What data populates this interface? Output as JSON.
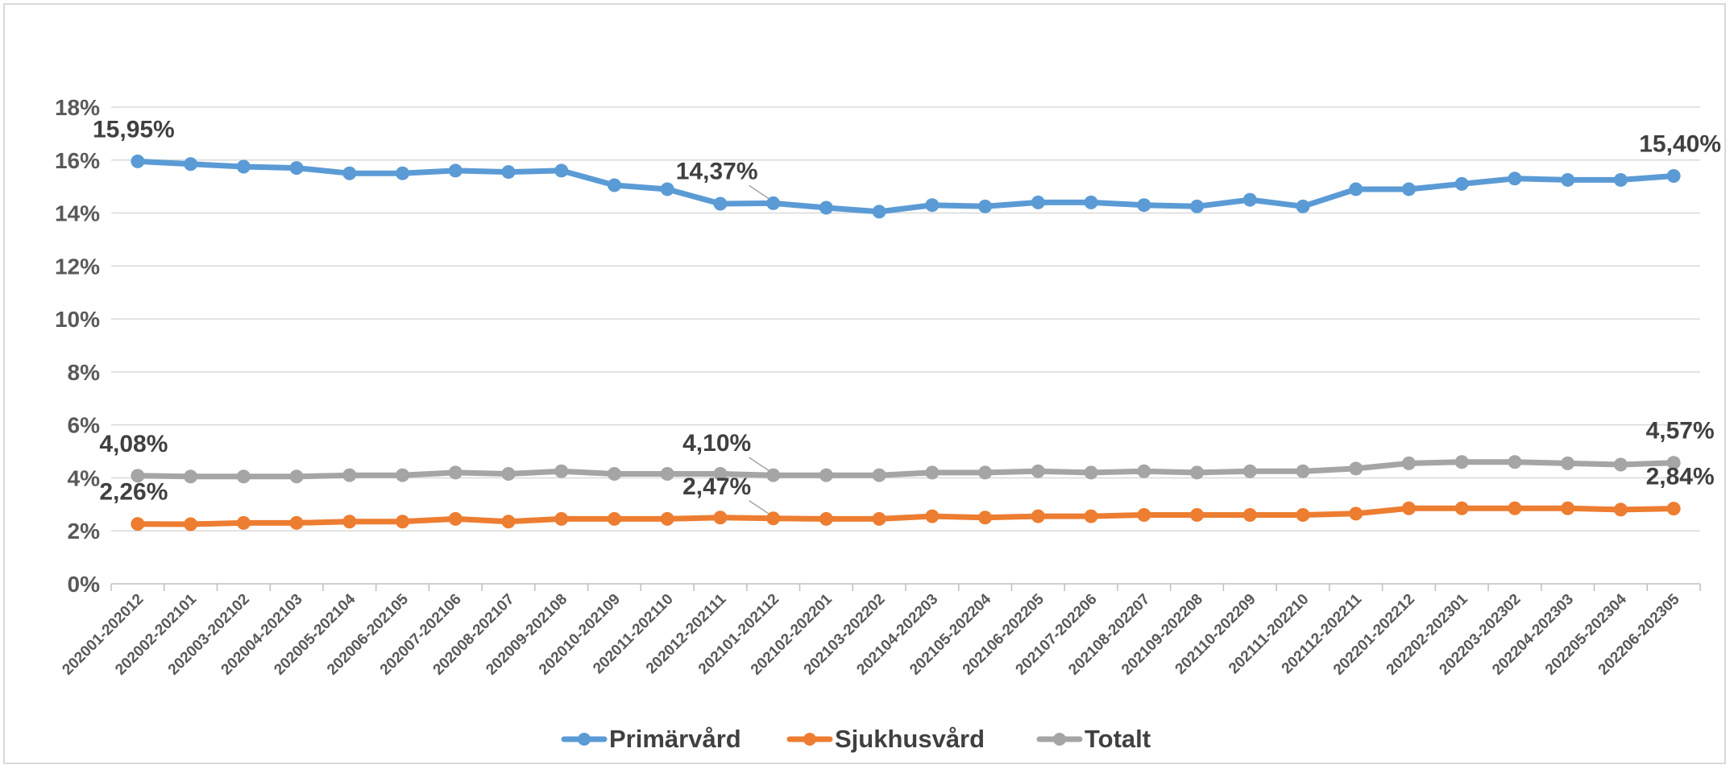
{
  "chart_data": {
    "type": "line",
    "title": "",
    "xlabel": "",
    "ylabel": "",
    "ylim": [
      0,
      18
    ],
    "yticks": [
      "0%",
      "2%",
      "4%",
      "6%",
      "8%",
      "10%",
      "12%",
      "14%",
      "16%",
      "18%"
    ],
    "grid": true,
    "legend_position": "bottom",
    "categories": [
      "202001-202012",
      "202002-202101",
      "202003-202102",
      "202004-202103",
      "202005-202104",
      "202006-202105",
      "202007-202106",
      "202008-202107",
      "202009-202108",
      "202010-202109",
      "202011-202110",
      "202012-202111",
      "202101-202112",
      "202102-202201",
      "202103-202202",
      "202104-202203",
      "202105-202204",
      "202106-202205",
      "202107-202206",
      "202108-202207",
      "202109-202208",
      "202110-202209",
      "202111-202210",
      "202112-202211",
      "202201-202212",
      "202202-202301",
      "202203-202302",
      "202204-202303",
      "202205-202304",
      "202206-202305"
    ],
    "series": [
      {
        "name": "Primärvård",
        "color": "#5b9bd5",
        "values": [
          15.95,
          15.85,
          15.75,
          15.7,
          15.5,
          15.5,
          15.6,
          15.55,
          15.6,
          15.05,
          14.9,
          14.35,
          14.37,
          14.2,
          14.05,
          14.3,
          14.25,
          14.4,
          14.4,
          14.3,
          14.25,
          14.5,
          14.25,
          14.9,
          14.9,
          15.1,
          15.3,
          15.25,
          15.25,
          15.4
        ],
        "labels": [
          {
            "index": 0,
            "text": "15,95%"
          },
          {
            "index": 12,
            "text": "14,37%"
          },
          {
            "index": 29,
            "text": "15,40%"
          }
        ]
      },
      {
        "name": "Sjukhusvård",
        "color": "#ed7d31",
        "values": [
          2.26,
          2.25,
          2.3,
          2.3,
          2.35,
          2.35,
          2.45,
          2.35,
          2.45,
          2.45,
          2.45,
          2.5,
          2.47,
          2.45,
          2.45,
          2.55,
          2.5,
          2.55,
          2.55,
          2.6,
          2.6,
          2.6,
          2.6,
          2.65,
          2.85,
          2.85,
          2.85,
          2.85,
          2.8,
          2.84
        ],
        "labels": [
          {
            "index": 0,
            "text": "2,26%"
          },
          {
            "index": 12,
            "text": "2,47%"
          },
          {
            "index": 29,
            "text": "2,84%"
          }
        ]
      },
      {
        "name": "Totalt",
        "color": "#a5a5a5",
        "values": [
          4.08,
          4.05,
          4.05,
          4.05,
          4.1,
          4.1,
          4.2,
          4.15,
          4.25,
          4.15,
          4.15,
          4.15,
          4.1,
          4.1,
          4.1,
          4.2,
          4.2,
          4.25,
          4.2,
          4.25,
          4.2,
          4.25,
          4.25,
          4.35,
          4.55,
          4.6,
          4.6,
          4.55,
          4.5,
          4.57
        ],
        "labels": [
          {
            "index": 0,
            "text": "4,08%"
          },
          {
            "index": 12,
            "text": "4,10%"
          },
          {
            "index": 29,
            "text": "4,57%"
          }
        ]
      }
    ]
  }
}
